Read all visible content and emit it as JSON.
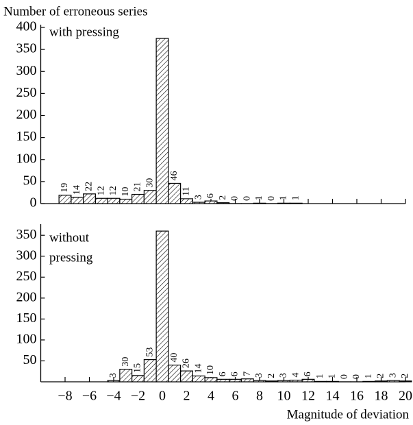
{
  "chart_data": [
    {
      "type": "bar",
      "y_label": "Number of erroneous series",
      "annotation": [
        "with pressing"
      ],
      "color": "#000000",
      "x": [
        -8,
        -7,
        -6,
        -5,
        -4,
        -3,
        -2,
        -1,
        0,
        1,
        2,
        3,
        4,
        5,
        6,
        7,
        8,
        9,
        10,
        11
      ],
      "values": [
        19,
        14,
        22,
        12,
        12,
        10,
        21,
        30,
        375,
        46,
        11,
        3,
        6,
        2,
        0,
        0,
        1,
        0,
        1,
        1
      ],
      "value_labels": [
        "19",
        "14",
        "22",
        "12",
        "12",
        "10",
        "21",
        "30",
        null,
        "46",
        "11",
        "3",
        "6",
        "2",
        "0",
        "0",
        "1",
        "0",
        "1",
        "1"
      ],
      "xlim": [
        -10,
        20
      ],
      "ylim": [
        0,
        400
      ],
      "yticks": [
        0,
        50,
        100,
        150,
        200,
        250,
        300,
        350,
        400
      ]
    },
    {
      "type": "bar",
      "x_label": "Magnitude of deviation",
      "annotation": [
        "without",
        "pressing"
      ],
      "color": "#000000",
      "x": [
        -4,
        -3,
        -2,
        -1,
        0,
        1,
        2,
        3,
        4,
        5,
        6,
        7,
        8,
        9,
        10,
        11,
        12,
        13,
        14,
        15,
        16,
        17,
        18,
        19,
        20
      ],
      "values": [
        3,
        30,
        15,
        53,
        360,
        40,
        26,
        14,
        10,
        6,
        6,
        7,
        3,
        2,
        3,
        4,
        6,
        1,
        1,
        0,
        0,
        1,
        2,
        3,
        2
      ],
      "value_labels": [
        "3",
        "30",
        "15",
        "53",
        null,
        "40",
        "26",
        "14",
        "10",
        "6",
        "6",
        "7",
        "3",
        "2",
        "3",
        "4",
        "6",
        "1",
        "1",
        "0",
        "0",
        "1",
        "2",
        "3",
        "2"
      ],
      "xlim": [
        -10,
        20
      ],
      "ylim": [
        0,
        370
      ],
      "yticks": [
        50,
        100,
        150,
        200,
        250,
        300,
        350
      ],
      "xticks": [
        {
          "value": -8,
          "label": "−8"
        },
        {
          "value": -6,
          "label": "−6"
        },
        {
          "value": -4,
          "label": "−4"
        },
        {
          "value": -2,
          "label": "−2"
        },
        0,
        2,
        4,
        6,
        8,
        10,
        12,
        14,
        16,
        18,
        20
      ]
    }
  ]
}
